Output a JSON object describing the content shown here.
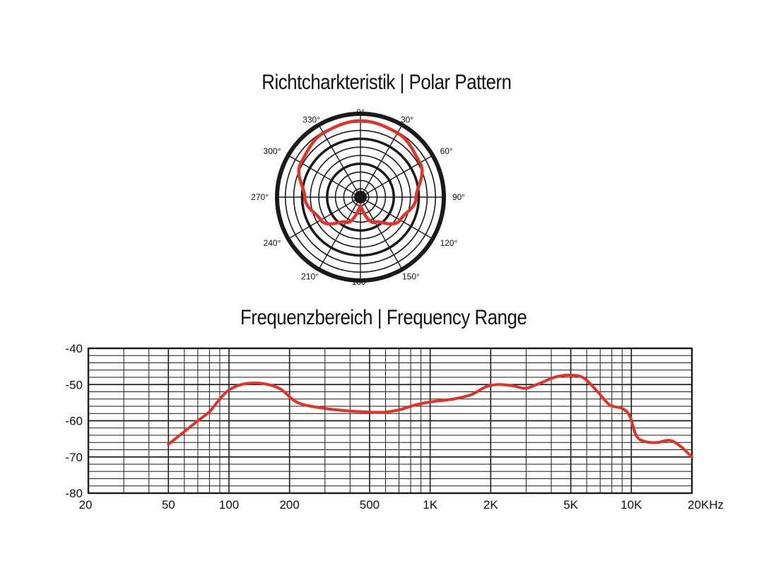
{
  "chart_data": [
    {
      "type": "polar",
      "title": "Richtcharkteristik | Polar Pattern",
      "angle_labels": [
        "0°",
        "30°",
        "60°",
        "90°",
        "120°",
        "150°",
        "180°",
        "210°",
        "240°",
        "270°",
        "300°",
        "330°"
      ],
      "rings": 10,
      "r_range": [
        0,
        1
      ],
      "series": [
        {
          "pattern": "cardioid",
          "color": "#e0342b",
          "points": [
            {
              "angle": 0,
              "r": 1.0
            },
            {
              "angle": 30,
              "r": 0.97
            },
            {
              "angle": 60,
              "r": 0.9
            },
            {
              "angle": 90,
              "r": 0.73
            },
            {
              "angle": 120,
              "r": 0.6
            },
            {
              "angle": 150,
              "r": 0.38
            },
            {
              "angle": 180,
              "r": 0.12
            },
            {
              "angle": 210,
              "r": 0.38
            },
            {
              "angle": 240,
              "r": 0.6
            },
            {
              "angle": 270,
              "r": 0.73
            },
            {
              "angle": 300,
              "r": 0.9
            },
            {
              "angle": 330,
              "r": 0.97
            }
          ]
        }
      ],
      "colors": {
        "grid": "#1a1a1a",
        "curve": "#e0342b"
      }
    },
    {
      "type": "line",
      "title": "Frequenzbereich | Frequency Range",
      "x_scale": "log",
      "xlim": [
        20,
        20000
      ],
      "ylim": [
        -80,
        -40
      ],
      "x_tick_labels": [
        {
          "value": 20,
          "label": "20"
        },
        {
          "value": 50,
          "label": "50"
        },
        {
          "value": 100,
          "label": "100"
        },
        {
          "value": 200,
          "label": "200"
        },
        {
          "value": 500,
          "label": "500"
        },
        {
          "value": 1000,
          "label": "1K"
        },
        {
          "value": 2000,
          "label": "2K"
        },
        {
          "value": 5000,
          "label": "5K"
        },
        {
          "value": 10000,
          "label": "10K"
        },
        {
          "value": 20000,
          "label": "20KHz"
        }
      ],
      "y_tick_labels": [
        {
          "value": -40,
          "label": "-40"
        },
        {
          "value": -50,
          "label": "-50"
        },
        {
          "value": -60,
          "label": "-60"
        },
        {
          "value": -70,
          "label": "-70"
        },
        {
          "value": -80,
          "label": "-80"
        }
      ],
      "grid": true,
      "series": [
        {
          "color": "#e0342b",
          "points": [
            {
              "x": 50,
              "y": -66.5
            },
            {
              "x": 60,
              "y": -63.0
            },
            {
              "x": 70,
              "y": -60.0
            },
            {
              "x": 80,
              "y": -57.5
            },
            {
              "x": 90,
              "y": -54.0
            },
            {
              "x": 100,
              "y": -51.5
            },
            {
              "x": 115,
              "y": -50.0
            },
            {
              "x": 130,
              "y": -49.6
            },
            {
              "x": 150,
              "y": -49.8
            },
            {
              "x": 180,
              "y": -51.2
            },
            {
              "x": 220,
              "y": -55.0
            },
            {
              "x": 300,
              "y": -56.6
            },
            {
              "x": 400,
              "y": -57.3
            },
            {
              "x": 500,
              "y": -57.6
            },
            {
              "x": 600,
              "y": -57.6
            },
            {
              "x": 700,
              "y": -57.0
            },
            {
              "x": 850,
              "y": -55.6
            },
            {
              "x": 1000,
              "y": -54.8
            },
            {
              "x": 1300,
              "y": -54.0
            },
            {
              "x": 1600,
              "y": -52.8
            },
            {
              "x": 1900,
              "y": -50.6
            },
            {
              "x": 2200,
              "y": -50.0
            },
            {
              "x": 2600,
              "y": -50.4
            },
            {
              "x": 3000,
              "y": -51.0
            },
            {
              "x": 3600,
              "y": -49.4
            },
            {
              "x": 4200,
              "y": -47.9
            },
            {
              "x": 5000,
              "y": -47.4
            },
            {
              "x": 5800,
              "y": -48.2
            },
            {
              "x": 6800,
              "y": -52.0
            },
            {
              "x": 7800,
              "y": -55.6
            },
            {
              "x": 9000,
              "y": -56.6
            },
            {
              "x": 9800,
              "y": -58.6
            },
            {
              "x": 10600,
              "y": -64.2
            },
            {
              "x": 11800,
              "y": -65.8
            },
            {
              "x": 13500,
              "y": -66.0
            },
            {
              "x": 15500,
              "y": -65.4
            },
            {
              "x": 17500,
              "y": -67.0
            },
            {
              "x": 20000,
              "y": -70.0
            }
          ]
        }
      ],
      "colors": {
        "grid": "#1a1a1a",
        "curve": "#e0342b"
      }
    }
  ]
}
